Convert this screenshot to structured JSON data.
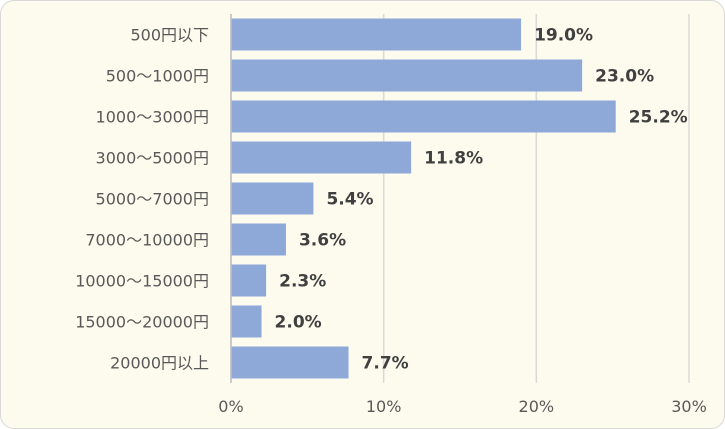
{
  "chart_data": {
    "type": "bar",
    "orientation": "horizontal",
    "categories": [
      "500円以下",
      "500～1000円",
      "1000～3000円",
      "3000～5000円",
      "5000～7000円",
      "7000～10000円",
      "10000～15000円",
      "15000～20000円",
      "20000円以上"
    ],
    "values": [
      19.0,
      23.0,
      25.2,
      11.8,
      5.4,
      3.6,
      2.3,
      2.0,
      7.7
    ],
    "value_labels": [
      "19.0%",
      "23.0%",
      "25.2%",
      "11.8%",
      "5.4%",
      "3.6%",
      "2.3%",
      "2.0%",
      "7.7%"
    ],
    "x_ticks": [
      "0%",
      "10%",
      "20%",
      "30%"
    ],
    "xlim": [
      0,
      30
    ],
    "grid": true,
    "bar_color": "#8ea9d8",
    "title": "",
    "xlabel": "",
    "ylabel": ""
  }
}
